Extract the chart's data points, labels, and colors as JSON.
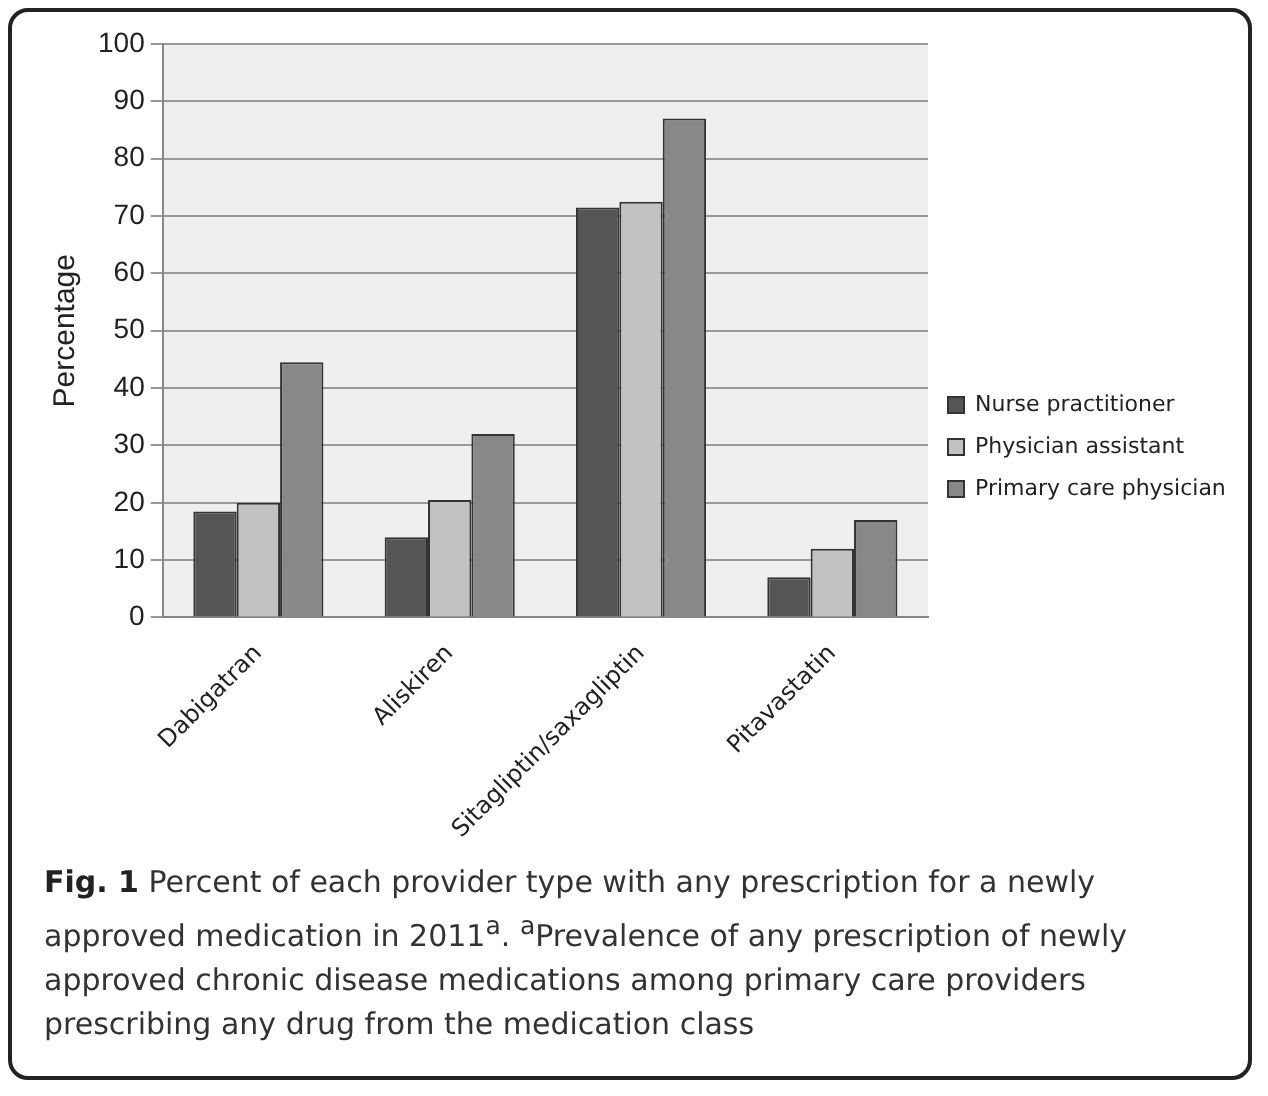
{
  "chart_data": {
    "type": "bar",
    "ylabel": "Percentage",
    "categories": [
      "Dabigatran",
      "Aliskiren",
      "Sitagliptin/saxagliptin",
      "Pitavastatin"
    ],
    "series": [
      {
        "name": "Nurse practitioner",
        "color": "#555555",
        "values": [
          18.5,
          14,
          71.5,
          7
        ]
      },
      {
        "name": "Physician assistant",
        "color": "#c2c2c2",
        "values": [
          20,
          20.5,
          72.5,
          12
        ]
      },
      {
        "name": "Primary care physician",
        "color": "#888888",
        "values": [
          44.5,
          32,
          87,
          17
        ]
      }
    ],
    "ylim": [
      0,
      100
    ],
    "yticks": [
      0,
      10,
      20,
      30,
      40,
      50,
      60,
      70,
      80,
      90,
      100
    ],
    "grid": "y",
    "legend": "right",
    "annotations": [
      "Fig. 1",
      "Percent of each provider type with any prescription for a newly approved medication in 2011$^{a}$. $^{a}$Prevalence of any prescription of newly approved chronic disease medications among primary care providers prescribing any drug from the medication class"
    ]
  }
}
